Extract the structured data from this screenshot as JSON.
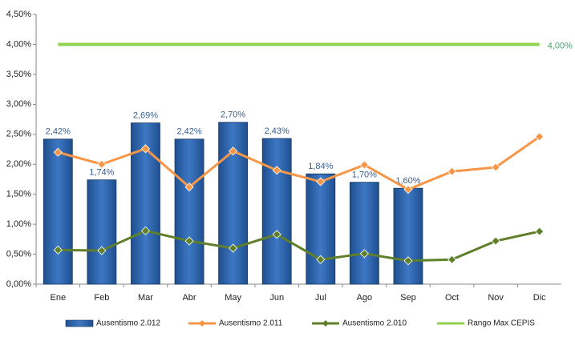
{
  "chart_data": {
    "type": "bar",
    "categories": [
      "Ene",
      "Feb",
      "Mar",
      "Abr",
      "May",
      "Jun",
      "Jul",
      "Ago",
      "Sep",
      "Oct",
      "Nov",
      "Dic"
    ],
    "ylim": [
      0,
      4.5
    ],
    "yticks": [
      {
        "value": 0,
        "label": "0,00%"
      },
      {
        "value": 0.5,
        "label": "0,50%"
      },
      {
        "value": 1,
        "label": "1,00%"
      },
      {
        "value": 1.5,
        "label": "1,50%"
      },
      {
        "value": 2,
        "label": "2,00%"
      },
      {
        "value": 2.5,
        "label": "2,50%"
      },
      {
        "value": 3,
        "label": "3,00%"
      },
      {
        "value": 3.5,
        "label": "3,50%"
      },
      {
        "value": 4,
        "label": "4,00%"
      },
      {
        "value": 4.5,
        "label": "4,50%"
      }
    ],
    "legend": "bottom",
    "series": [
      {
        "name": "Ausentismo 2.012",
        "type": "bar",
        "color": "#2e63a8",
        "values": [
          2.42,
          1.74,
          2.69,
          2.42,
          2.7,
          2.43,
          1.84,
          1.7,
          1.6,
          null,
          null,
          null
        ],
        "value_labels": [
          "2,42%",
          "1,74%",
          "2,69%",
          "2,42%",
          "2,70%",
          "2,43%",
          "1,84%",
          "1,70%",
          "1,60%",
          null,
          null,
          null
        ]
      },
      {
        "name": "Ausentismo 2.011",
        "type": "line",
        "color": "#f79646",
        "values": [
          2.2,
          2.0,
          2.26,
          1.62,
          2.22,
          1.9,
          1.71,
          1.99,
          1.58,
          1.88,
          1.95,
          2.46
        ]
      },
      {
        "name": "Ausentismo 2.010",
        "type": "line",
        "color": "#5f7f2a",
        "values": [
          0.57,
          0.56,
          0.89,
          0.72,
          0.6,
          0.83,
          0.41,
          0.51,
          0.39,
          0.41,
          0.72,
          0.88
        ]
      },
      {
        "name": "Rango Max CEPIS",
        "type": "line",
        "color": "#92d050",
        "marker": false,
        "values": [
          4,
          4,
          4,
          4,
          4,
          4,
          4,
          4,
          4,
          4,
          4,
          4
        ],
        "value_labels": [
          null,
          null,
          null,
          null,
          null,
          null,
          null,
          null,
          null,
          null,
          null,
          "4,00%"
        ]
      }
    ]
  }
}
